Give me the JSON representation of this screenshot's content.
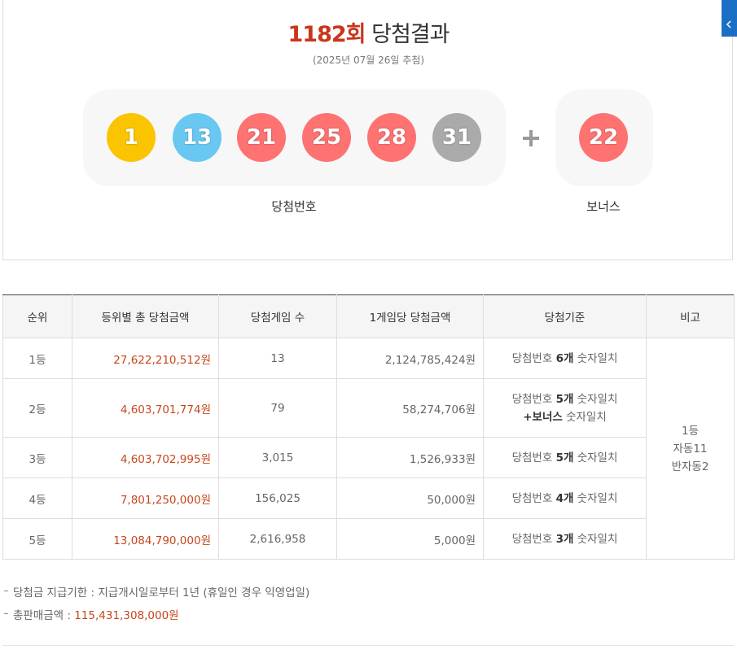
{
  "result": {
    "round": "1182회",
    "title": "당첨결과",
    "date": "(2025년 07월 26일 추첨)",
    "numbers": [
      {
        "text": "1",
        "color": "#fbc400"
      },
      {
        "text": "13",
        "color": "#69c8f2"
      },
      {
        "text": "21",
        "color": "#ff7272"
      },
      {
        "text": "25",
        "color": "#ff7272"
      },
      {
        "text": "28",
        "color": "#ff7272"
      },
      {
        "text": "31",
        "color": "#aaaaaa"
      }
    ],
    "bonus": {
      "text": "22",
      "color": "#ff7272"
    },
    "numbers_label": "당첨번호",
    "bonus_label": "보너스"
  },
  "table": {
    "headers": [
      "순위",
      "등위별 총 당첨금액",
      "당첨게임 수",
      "1게임당 당첨금액",
      "당첨기준",
      "비고"
    ],
    "rows": [
      {
        "rank": "1등",
        "total": "27,622,210,512원",
        "winners": "13",
        "per_game": "2,124,785,424원",
        "criteria": [
          [
            {
              "text": "당첨번호 ",
              "bold": false
            },
            {
              "text": "6개",
              "bold": true
            },
            {
              "text": " 숫자일치",
              "bold": false
            }
          ]
        ]
      },
      {
        "rank": "2등",
        "total": "4,603,701,774원",
        "winners": "79",
        "per_game": "58,274,706원",
        "criteria": [
          [
            {
              "text": "당첨번호 ",
              "bold": false
            },
            {
              "text": "5개",
              "bold": true
            },
            {
              "text": " 숫자일치",
              "bold": false
            }
          ],
          [
            {
              "text": "+보너스",
              "bold": true
            },
            {
              "text": " 숫자일치",
              "bold": false
            }
          ]
        ]
      },
      {
        "rank": "3등",
        "total": "4,603,702,995원",
        "winners": "3,015",
        "per_game": "1,526,933원",
        "criteria": [
          [
            {
              "text": "당첨번호 ",
              "bold": false
            },
            {
              "text": "5개",
              "bold": true
            },
            {
              "text": " 숫자일치",
              "bold": false
            }
          ]
        ]
      },
      {
        "rank": "4등",
        "total": "7,801,250,000원",
        "winners": "156,025",
        "per_game": "50,000원",
        "criteria": [
          [
            {
              "text": "당첨번호 ",
              "bold": false
            },
            {
              "text": "4개",
              "bold": true
            },
            {
              "text": " 숫자일치",
              "bold": false
            }
          ]
        ]
      },
      {
        "rank": "5등",
        "total": "13,084,790,000원",
        "winners": "2,616,958",
        "per_game": "5,000원",
        "criteria": [
          [
            {
              "text": "당첨번호 ",
              "bold": false
            },
            {
              "text": "3개",
              "bold": true
            },
            {
              "text": " 숫자일치",
              "bold": false
            }
          ]
        ]
      }
    ],
    "note": [
      "1등",
      "자동11",
      "반자동2"
    ]
  },
  "notes": [
    {
      "label": "당첨금 지급기한 : ",
      "value": "지급개시일로부터 1년 (휴일인 경우 익영업일)",
      "highlight": false
    },
    {
      "label": "총판매금액 : ",
      "value": "115,431,308,000원",
      "highlight": true
    }
  ]
}
